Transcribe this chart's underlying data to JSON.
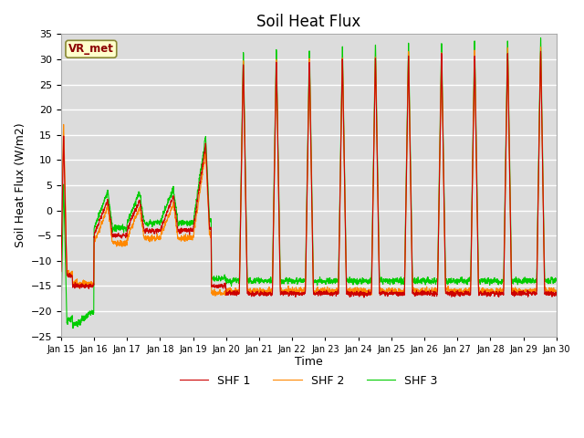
{
  "title": "Soil Heat Flux",
  "ylabel": "Soil Heat Flux (W/m2)",
  "xlabel": "Time",
  "ylim": [
    -25,
    35
  ],
  "plot_bg_color": "#dcdcdc",
  "grid_color": "white",
  "title_fontsize": 12,
  "axis_fontsize": 9,
  "tick_fontsize": 8,
  "legend_labels": [
    "SHF 1",
    "SHF 2",
    "SHF 3"
  ],
  "legend_colors": [
    "#cc0000",
    "#ff8800",
    "#00cc00"
  ],
  "station_label": "VR_met",
  "station_label_color": "#8b0000",
  "station_box_color": "#ffffcc",
  "n_days": 15,
  "start_day": 15
}
